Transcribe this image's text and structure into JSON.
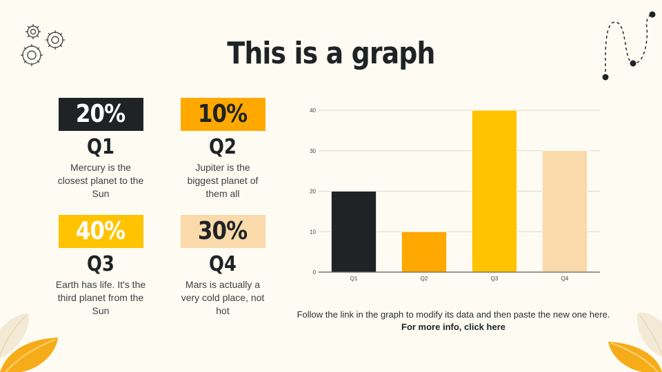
{
  "slide": {
    "title": "This is a graph"
  },
  "stats": [
    {
      "percent": "20%",
      "quarter": "Q1",
      "desc": "Mercury is the closest planet to the Sun",
      "color": "#1f2326",
      "text_color": "#ffffff"
    },
    {
      "percent": "10%",
      "quarter": "Q2",
      "desc": "Jupiter is the biggest planet of them all",
      "color": "#ffa800",
      "text_color": "#1f2326"
    },
    {
      "percent": "40%",
      "quarter": "Q3",
      "desc": "Earth has life. It's the third planet from the Sun",
      "color": "#ffc300",
      "text_color": "#ffffff"
    },
    {
      "percent": "30%",
      "quarter": "Q4",
      "desc": "Mars is actually a very cold place, not hot",
      "color": "#fad9aa",
      "text_color": "#1f2326"
    }
  ],
  "chart_data": {
    "type": "bar",
    "categories": [
      "Q1",
      "Q2",
      "Q3",
      "Q4"
    ],
    "values": [
      20,
      10,
      40,
      30
    ],
    "colors": [
      "#1f2326",
      "#ffa800",
      "#ffc300",
      "#fad9aa"
    ],
    "y_ticks": [
      "0",
      "10",
      "20",
      "30",
      "40"
    ],
    "ylim": [
      0,
      40
    ],
    "grid": true,
    "title": "",
    "xlabel": "",
    "ylabel": ""
  },
  "note": {
    "text": "Follow the link in the graph to modify its data and then paste the new one here.",
    "link": "For more info, click here"
  }
}
